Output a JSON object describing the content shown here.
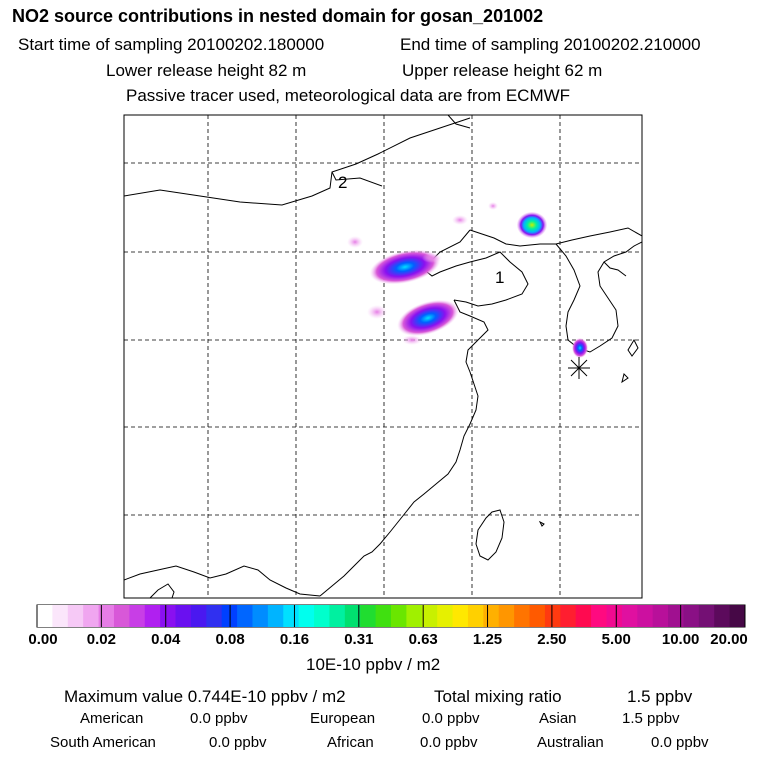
{
  "header": {
    "title": "NO2 source contributions in nested domain for gosan_201002",
    "start_time": "Start time of sampling 20100202.180000",
    "end_time": "End time of sampling 20100202.210000",
    "lower_release": "Lower release height   82 m",
    "upper_release": "Upper release height   62 m",
    "tracer_note": "Passive tracer used, meteorological data are from ECMWF"
  },
  "map": {
    "region_labels": [
      "2",
      "1"
    ],
    "receptor_symbol": "*"
  },
  "colorbar": {
    "tick_labels": [
      "0.00",
      "0.02",
      "0.04",
      "0.08",
      "0.16",
      "0.31",
      "0.63",
      "1.25",
      "2.50",
      "5.00",
      "10.00",
      "20.00"
    ],
    "units": "10E-10 ppbv / m2",
    "colors": [
      "#ffffff",
      "#fbe6fb",
      "#f6c9f6",
      "#f0a6f0",
      "#e67de6",
      "#d858d8",
      "#c83ee6",
      "#b020f0",
      "#8a10f0",
      "#6a10f0",
      "#4a18f0",
      "#3030f0",
      "#0040ff",
      "#0066ff",
      "#008cff",
      "#00b4ff",
      "#00e0ff",
      "#00ffee",
      "#00ffcc",
      "#00f0a0",
      "#00e070",
      "#20dd30",
      "#40e010",
      "#6ae600",
      "#a0f000",
      "#c8f000",
      "#e6f000",
      "#ffe800",
      "#ffd000",
      "#ffb000",
      "#ff9600",
      "#ff7400",
      "#ff5a00",
      "#ff3a10",
      "#ff1e30",
      "#ff0a50",
      "#ff0a80",
      "#f00a90",
      "#e010a0",
      "#cc10a0",
      "#b8109a",
      "#a01090",
      "#8a1085",
      "#741074",
      "#5c0a5c",
      "#460846"
    ]
  },
  "summary": {
    "max_label": "Maximum value  0.744E-10 ppbv / m2",
    "total_label": "Total mixing ratio",
    "total_value": "1.5 ppbv",
    "rows": [
      [
        {
          "name": "American",
          "value": "0.0 ppbv"
        },
        {
          "name": "European",
          "value": "0.0 ppbv"
        },
        {
          "name": "Asian",
          "value": "1.5 ppbv"
        }
      ],
      [
        {
          "name": "South American",
          "value": "0.0 ppbv"
        },
        {
          "name": "African",
          "value": "0.0 ppbv"
        },
        {
          "name": "Australian",
          "value": "0.0 ppbv"
        }
      ]
    ]
  }
}
